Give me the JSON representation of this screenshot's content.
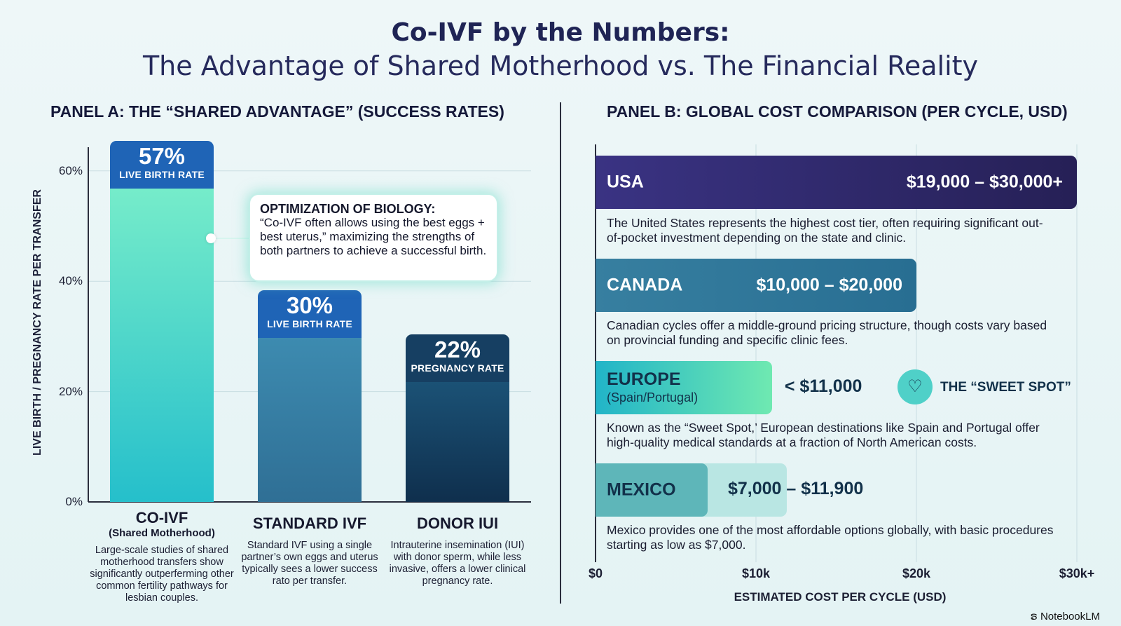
{
  "title": "Co-IVF by the Numbers:",
  "subtitle": "The Advantage of Shared Motherhood vs. The Financial Reality",
  "panel_a": {
    "title": "PANEL A: THE “SHARED ADVANTAGE” (SUCCESS RATES)",
    "ylabel": "LIVE BIRTH / PREGNANCY RATE PER TRANSFER",
    "yticks": [
      "0%",
      "20%",
      "40%",
      "60%"
    ],
    "callout": {
      "heading": "OPTIMIZATION OF BIOLOGY:",
      "text": "“Co-IVF often allows using the best eggs + best uterus,” maximizing the strengths of both partners to achieve a successful birth."
    },
    "bars": [
      {
        "name": "CO-IVF",
        "sub": "(Shared Motherhood)",
        "value_label": "57%",
        "rate_label": "LIVE BIRTH RATE",
        "desc": "Large-scale studies of shared motherhood transfers show significantly outperferming other common fertility pathways for lesbian couples."
      },
      {
        "name": "STANDARD IVF",
        "sub": "",
        "value_label": "30%",
        "rate_label": "LIVE BIRTH RATE",
        "desc": "Standard IVF using a single partner’s own eggs and uterus typically sees a lower success rato per transfer."
      },
      {
        "name": "DONOR IUI",
        "sub": "",
        "value_label": "22%",
        "rate_label": "PREGNANCY RATE",
        "desc": "Intrauterine insemination (IUI) with donor sperm, while less invasive, offers a lower clinical pregnancy rate."
      }
    ]
  },
  "panel_b": {
    "title": "PANEL B: GLOBAL COST COMPARISON (PER CYCLE, USD)",
    "xlabel": "ESTIMATED COST PER CYCLE (USD)",
    "xticks": [
      "$0",
      "$10k",
      "$20k",
      "$30k+"
    ],
    "sweet_spot_label": "THE “SWEET SPOT”",
    "rows": [
      {
        "name": "USA",
        "sub": "",
        "price": "$19,000 – $30,000+",
        "desc": "The United States represents the highest cost tier, often requiring significant out-of-pocket investment depending on the state and clinic."
      },
      {
        "name": "CANADA",
        "sub": "",
        "price": "$10,000 – $20,000",
        "desc": "Canadian cycles offer a middle-ground pricing structure, though costs vary based on provincial funding and specific clinic fees."
      },
      {
        "name": "EUROPE",
        "sub": "(Spain/Portugal)",
        "price": "< $11,000",
        "desc": "Known as the “Sweet Spot,’ European destinations like Spain and Portugal offer high-quality medical standards at a fraction of North American costs."
      },
      {
        "name": "MEXICO",
        "sub": "",
        "price": "$7,000 – $11,900",
        "desc": "Mexico provides one of the most affordable options globally, with basic procedures starting as low as $7,000."
      }
    ]
  },
  "brand": "NotebookLM",
  "chart_data": [
    {
      "type": "bar",
      "title": "PANEL A: THE “SHARED ADVANTAGE” (SUCCESS RATES)",
      "categories": [
        "CO-IVF",
        "STANDARD IVF",
        "DONOR IUI"
      ],
      "values": [
        57,
        30,
        22
      ],
      "ylabel": "LIVE BIRTH / PREGNANCY RATE PER TRANSFER",
      "ylim": [
        0,
        66
      ],
      "colors": [
        "#62e0c8",
        "#3a86a8",
        "#14405f"
      ],
      "header_colors": [
        "#1f64b6",
        "#1f64b6",
        "#163f62"
      ]
    },
    {
      "type": "bar",
      "orientation": "horizontal",
      "title": "PANEL B: GLOBAL COST COMPARISON (PER CYCLE, USD)",
      "categories": [
        "USA",
        "CANADA",
        "EUROPE",
        "MEXICO"
      ],
      "ranges": [
        [
          19000,
          30000
        ],
        [
          10000,
          20000
        ],
        [
          0,
          11000
        ],
        [
          7000,
          11900
        ]
      ],
      "values": [
        30000,
        20000,
        11000,
        11900
      ],
      "xlabel": "ESTIMATED COST PER CYCLE (USD)",
      "xlim": [
        0,
        30000
      ],
      "colors": [
        "#2e2766",
        "#2f7a9b",
        "#5de0b0",
        "#5db6b8"
      ]
    }
  ]
}
